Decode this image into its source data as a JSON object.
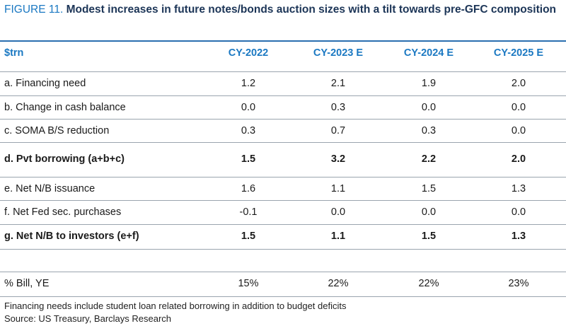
{
  "title": {
    "figure_label": "FIGURE 11.",
    "text": "Modest increases in future notes/bonds auction sizes with a tilt towards pre-GFC composition"
  },
  "chart_data": {
    "type": "table",
    "unit_header": "$trn",
    "columns": [
      "CY-2022",
      "CY-2023 E",
      "CY-2024 E",
      "CY-2025 E"
    ],
    "rows": [
      {
        "label": "a. Financing need",
        "values": [
          "1.2",
          "2.1",
          "1.9",
          "2.0"
        ],
        "bold": false
      },
      {
        "label": "b. Change in cash balance",
        "values": [
          "0.0",
          "0.3",
          "0.0",
          "0.0"
        ],
        "bold": false
      },
      {
        "label": "c. SOMA B/S reduction",
        "values": [
          "0.3",
          "0.7",
          "0.3",
          "0.0"
        ],
        "bold": false
      },
      {
        "label": "d. Pvt borrowing (a+b+c)",
        "values": [
          "1.5",
          "3.2",
          "2.2",
          "2.0"
        ],
        "bold": true
      },
      {
        "label": "e. Net N/B issuance",
        "values": [
          "1.6",
          "1.1",
          "1.5",
          "1.3"
        ],
        "bold": false
      },
      {
        "label": "f. Net Fed sec. purchases",
        "values": [
          "-0.1",
          "0.0",
          "0.0",
          "0.0"
        ],
        "bold": false
      },
      {
        "label": "g. Net N/B to investors (e+f)",
        "values": [
          "1.5",
          "1.1",
          "1.5",
          "1.3"
        ],
        "bold": true
      },
      {
        "label": "",
        "values": [
          "",
          "",
          "",
          ""
        ],
        "bold": false
      },
      {
        "label": "% Bill, YE",
        "values": [
          "15%",
          "22%",
          "22%",
          "23%"
        ],
        "bold": false
      }
    ]
  },
  "notes": {
    "line1": "Financing needs include student loan related borrowing in addition to budget deficits",
    "line2": "Source: US Treasury, Barclays Research"
  },
  "colors": {
    "accent": "#1a78c2",
    "title": "#1c3557",
    "rule": "#2a6fb0",
    "grid": "#9aa4ae"
  }
}
